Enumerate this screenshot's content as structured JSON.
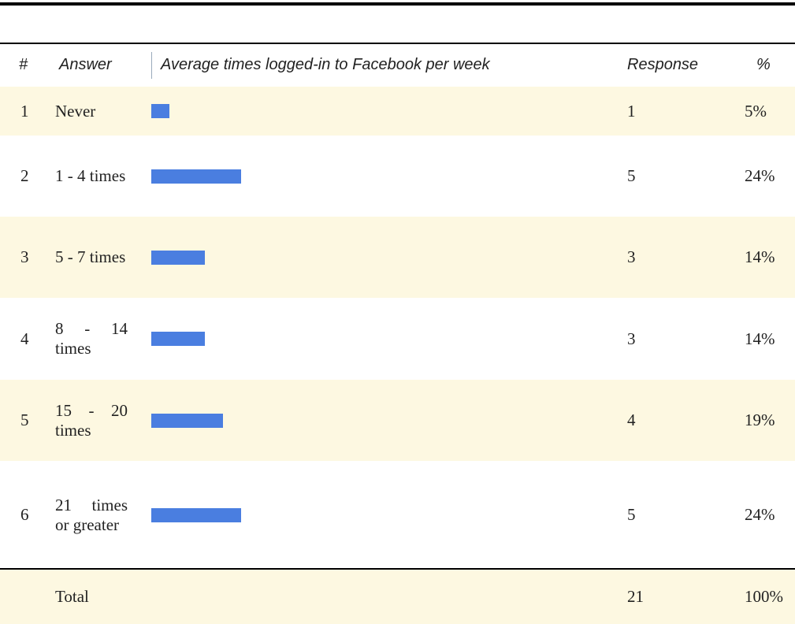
{
  "table": {
    "headers": [
      "#",
      "Answer",
      "Average times logged-in to Facebook per week",
      "Response",
      "%"
    ],
    "rows": [
      {
        "number": "1",
        "answer": "Never",
        "response": 1,
        "percent": "5%"
      },
      {
        "number": "2",
        "answer": "1 - 4 times",
        "response": 5,
        "percent": "24%"
      },
      {
        "number": "3",
        "answer": "5 - 7 times",
        "response": 3,
        "percent": "14%"
      },
      {
        "number": "4",
        "answer": "8 - 14 times",
        "response": 3,
        "percent": "14%"
      },
      {
        "number": "5",
        "answer": "15 - 20 times",
        "response": 4,
        "percent": "19%"
      },
      {
        "number": "6",
        "answer": "21 times or greater",
        "response": 5,
        "percent": "24%"
      }
    ],
    "total": {
      "label": "Total",
      "response": 21,
      "percent": "100%"
    }
  }
}
